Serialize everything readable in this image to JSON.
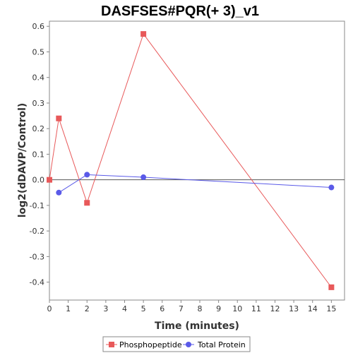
{
  "chart_data": {
    "type": "line",
    "title": "DASFSES#PQR(+ 3)_v1",
    "xlabel": "Time (minutes)",
    "ylabel": "log2(dDAVP/Control)",
    "xlim": [
      0,
      15.7
    ],
    "ylim": [
      -0.47,
      0.62
    ],
    "xticks": [
      0,
      1,
      2,
      3,
      4,
      5,
      6,
      7,
      8,
      9,
      10,
      11,
      12,
      13,
      14,
      15
    ],
    "yticks": [
      -0.4,
      -0.3,
      -0.2,
      -0.1,
      0.0,
      0.1,
      0.2,
      0.3,
      0.4,
      0.5,
      0.6
    ],
    "ytick_labels": [
      "-0.4",
      "-0.3",
      "-0.2",
      "-0.1",
      "0.0",
      "0.1",
      "0.2",
      "0.3",
      "0.4",
      "0.5",
      "0.6"
    ],
    "grid": false,
    "zero_line": true,
    "legend_position": "bottom",
    "series": [
      {
        "name": "Phosphopeptide",
        "color": "#e8595a",
        "marker": "square",
        "x": [
          0,
          0.5,
          2,
          5,
          15
        ],
        "y": [
          0.0,
          0.24,
          -0.09,
          0.57,
          -0.42
        ]
      },
      {
        "name": "Total Protein",
        "color": "#5a5ae8",
        "marker": "circle",
        "x": [
          0.5,
          2,
          5,
          15
        ],
        "y": [
          -0.05,
          0.02,
          0.01,
          -0.03
        ]
      }
    ]
  }
}
